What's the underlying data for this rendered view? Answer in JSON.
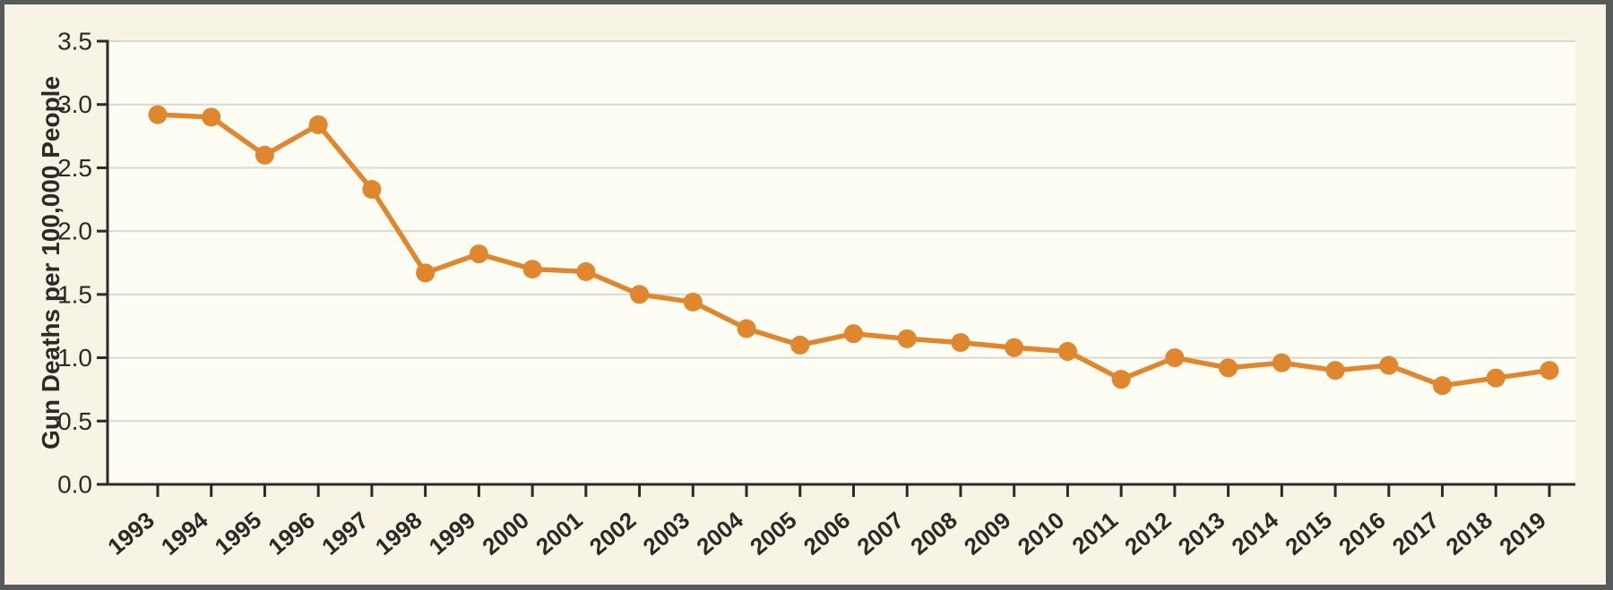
{
  "window": {
    "frame_color": "#58595b",
    "canvas_color": "#f8f4e5",
    "plot_color": "#fdfdf4"
  },
  "chart_data": {
    "type": "line",
    "title": "",
    "xlabel": "",
    "ylabel": "Gun Deaths per 100,000 People",
    "categories": [
      "1993",
      "1994",
      "1995",
      "1996",
      "1997",
      "1998",
      "1999",
      "2000",
      "2001",
      "2002",
      "2003",
      "2004",
      "2005",
      "2006",
      "2007",
      "2008",
      "2009",
      "2010",
      "2011",
      "2012",
      "2013",
      "2014",
      "2015",
      "2016",
      "2017",
      "2018",
      "2019"
    ],
    "series": [
      {
        "name": "Gun Deaths per 100,000 People",
        "color": "#e0862e",
        "marker": "circle",
        "values": [
          2.92,
          2.9,
          2.6,
          2.84,
          2.33,
          1.67,
          1.82,
          1.7,
          1.68,
          1.5,
          1.44,
          1.23,
          1.1,
          1.19,
          1.15,
          1.12,
          1.08,
          1.05,
          0.83,
          1.0,
          0.92,
          0.96,
          0.9,
          0.94,
          0.78,
          0.84,
          0.9
        ]
      }
    ],
    "ylim": [
      0,
      3.5
    ],
    "ytick_labels": [
      "0.0",
      "0.5",
      "1.0",
      "1.5",
      "2.0",
      "2.5",
      "3.0",
      "3.5"
    ],
    "grid": true,
    "legend_position": "none",
    "grid_color": "#d9d8d2",
    "axis_color": "#2b2a26",
    "text_color": "#2b2a26"
  }
}
